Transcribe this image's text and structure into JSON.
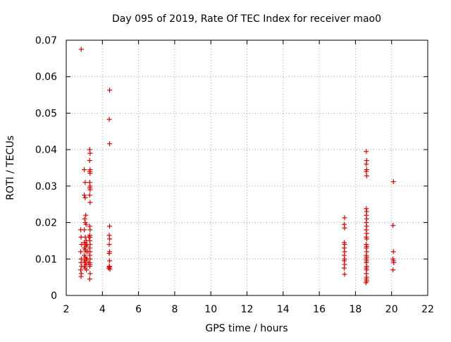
{
  "chart_data": {
    "type": "scatter",
    "title": "Day 095 of 2019, Rate Of TEC Index for receiver mao0",
    "xlabel": "GPS time / hours",
    "ylabel": "ROTI / TECUs",
    "xlim": [
      2,
      22
    ],
    "ylim": [
      0,
      0.07
    ],
    "xticks": [
      2,
      4,
      6,
      8,
      10,
      12,
      14,
      16,
      18,
      20,
      22
    ],
    "yticks": [
      0,
      0.01,
      0.02,
      0.03,
      0.04,
      0.05,
      0.06,
      0.07
    ],
    "xtick_labels": [
      "2",
      "4",
      "6",
      "8",
      "10",
      "12",
      "14",
      "16",
      "18",
      "20",
      "22"
    ],
    "ytick_labels": [
      "0",
      "0.01",
      "0.02",
      "0.03",
      "0.04",
      "0.05",
      "0.06",
      "0.07"
    ],
    "grid": true,
    "marker": "+",
    "color": "#e00000",
    "series": [
      {
        "name": "ROTI",
        "points": [
          [
            2.83,
            0.0675
          ],
          [
            2.8,
            0.018
          ],
          [
            2.82,
            0.016
          ],
          [
            2.85,
            0.014
          ],
          [
            2.8,
            0.012
          ],
          [
            2.83,
            0.01
          ],
          [
            2.82,
            0.009
          ],
          [
            2.85,
            0.008
          ],
          [
            2.8,
            0.007
          ],
          [
            2.83,
            0.006
          ],
          [
            2.82,
            0.0052
          ],
          [
            3.0,
            0.0345
          ],
          [
            3.05,
            0.031
          ],
          [
            3.0,
            0.0275
          ],
          [
            3.05,
            0.0268
          ],
          [
            3.08,
            0.022
          ],
          [
            3.02,
            0.021
          ],
          [
            3.05,
            0.02
          ],
          [
            3.1,
            0.0195
          ],
          [
            3.0,
            0.018
          ],
          [
            3.05,
            0.016
          ],
          [
            3.1,
            0.015
          ],
          [
            3.0,
            0.0145
          ],
          [
            3.05,
            0.014
          ],
          [
            3.1,
            0.0135
          ],
          [
            3.0,
            0.013
          ],
          [
            3.05,
            0.0125
          ],
          [
            3.1,
            0.012
          ],
          [
            3.0,
            0.011
          ],
          [
            3.05,
            0.0105
          ],
          [
            3.1,
            0.01
          ],
          [
            3.0,
            0.0095
          ],
          [
            3.05,
            0.009
          ],
          [
            3.1,
            0.0085
          ],
          [
            3.0,
            0.008
          ],
          [
            3.05,
            0.0075
          ],
          [
            3.15,
            0.014
          ],
          [
            3.15,
            0.01
          ],
          [
            3.12,
            0.007
          ],
          [
            3.3,
            0.04
          ],
          [
            3.32,
            0.039
          ],
          [
            3.3,
            0.037
          ],
          [
            3.32,
            0.0345
          ],
          [
            3.3,
            0.034
          ],
          [
            3.32,
            0.0335
          ],
          [
            3.3,
            0.031
          ],
          [
            3.32,
            0.03
          ],
          [
            3.3,
            0.0295
          ],
          [
            3.32,
            0.029
          ],
          [
            3.3,
            0.0275
          ],
          [
            3.32,
            0.0255
          ],
          [
            3.3,
            0.019
          ],
          [
            3.32,
            0.018
          ],
          [
            3.3,
            0.0165
          ],
          [
            3.32,
            0.016
          ],
          [
            3.3,
            0.015
          ],
          [
            3.32,
            0.014
          ],
          [
            3.3,
            0.013
          ],
          [
            3.32,
            0.012
          ],
          [
            3.3,
            0.011
          ],
          [
            3.32,
            0.01
          ],
          [
            3.3,
            0.009
          ],
          [
            3.32,
            0.0085
          ],
          [
            3.3,
            0.008
          ],
          [
            3.32,
            0.006
          ],
          [
            3.3,
            0.0045
          ],
          [
            3.2,
            0.012
          ],
          [
            3.22,
            0.009
          ],
          [
            3.25,
            0.016
          ],
          [
            4.4,
            0.0563
          ],
          [
            4.38,
            0.0483
          ],
          [
            4.4,
            0.0416
          ],
          [
            4.4,
            0.019
          ],
          [
            4.38,
            0.0165
          ],
          [
            4.4,
            0.0155
          ],
          [
            4.38,
            0.014
          ],
          [
            4.4,
            0.012
          ],
          [
            4.38,
            0.0115
          ],
          [
            4.4,
            0.0095
          ],
          [
            4.38,
            0.008
          ],
          [
            4.4,
            0.0078
          ],
          [
            4.35,
            0.0075
          ],
          [
            4.42,
            0.0072
          ],
          [
            17.4,
            0.0213
          ],
          [
            17.38,
            0.0195
          ],
          [
            17.4,
            0.0185
          ],
          [
            17.38,
            0.0145
          ],
          [
            17.4,
            0.014
          ],
          [
            17.38,
            0.013
          ],
          [
            17.4,
            0.012
          ],
          [
            17.38,
            0.011
          ],
          [
            17.4,
            0.01
          ],
          [
            17.38,
            0.0095
          ],
          [
            17.4,
            0.0085
          ],
          [
            17.38,
            0.0075
          ],
          [
            17.4,
            0.0058
          ],
          [
            18.6,
            0.0395
          ],
          [
            18.62,
            0.037
          ],
          [
            18.6,
            0.036
          ],
          [
            18.62,
            0.0345
          ],
          [
            18.6,
            0.034
          ],
          [
            18.62,
            0.0328
          ],
          [
            18.6,
            0.0238
          ],
          [
            18.62,
            0.023
          ],
          [
            18.6,
            0.022
          ],
          [
            18.62,
            0.021
          ],
          [
            18.6,
            0.02
          ],
          [
            18.62,
            0.019
          ],
          [
            18.6,
            0.018
          ],
          [
            18.62,
            0.017
          ],
          [
            18.6,
            0.016
          ],
          [
            18.62,
            0.0155
          ],
          [
            18.6,
            0.014
          ],
          [
            18.62,
            0.0135
          ],
          [
            18.6,
            0.013
          ],
          [
            18.62,
            0.012
          ],
          [
            18.6,
            0.011
          ],
          [
            18.62,
            0.0105
          ],
          [
            18.6,
            0.01
          ],
          [
            18.62,
            0.0095
          ],
          [
            18.6,
            0.009
          ],
          [
            18.62,
            0.008
          ],
          [
            18.6,
            0.0075
          ],
          [
            18.62,
            0.007
          ],
          [
            18.6,
            0.006
          ],
          [
            18.62,
            0.005
          ],
          [
            18.6,
            0.0045
          ],
          [
            18.62,
            0.004
          ],
          [
            18.58,
            0.0035
          ],
          [
            20.1,
            0.0312
          ],
          [
            20.08,
            0.0192
          ],
          [
            20.1,
            0.012
          ],
          [
            20.08,
            0.01
          ],
          [
            20.1,
            0.0095
          ],
          [
            20.12,
            0.009
          ],
          [
            20.08,
            0.007
          ]
        ]
      }
    ]
  }
}
